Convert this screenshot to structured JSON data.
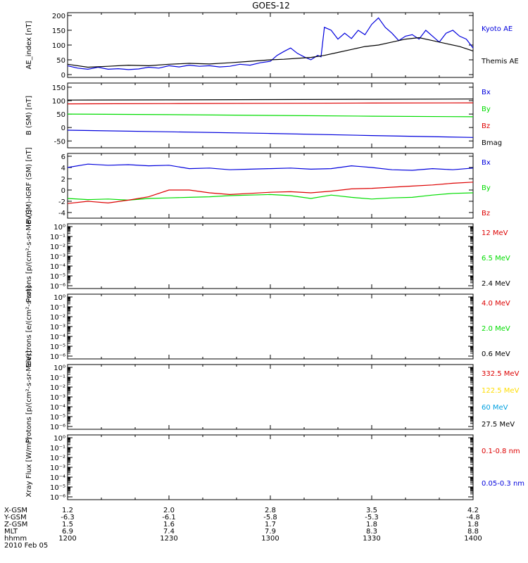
{
  "title": "GOES-12",
  "x_axis": {
    "row_labels": [
      "X-GSM",
      "Y-GSM",
      "Z-GSM",
      "MLT",
      "hhmm"
    ],
    "columns": [
      [
        "1.2",
        "-6.3",
        "1.5",
        "6.9",
        "1200"
      ],
      [
        "2.0",
        "-6.1",
        "1.6",
        "7.4",
        "1230"
      ],
      [
        "2.8",
        "-5.8",
        "1.7",
        "7.9",
        "1300"
      ],
      [
        "3.5",
        "-5.3",
        "1.8",
        "8.3",
        "1330"
      ],
      [
        "4.2",
        "-4.8",
        "1.8",
        "8.8",
        "1400"
      ]
    ],
    "date": "2010 Feb 05"
  },
  "colors": {
    "blue": "#0000dd",
    "green": "#00dd00",
    "red": "#dd0000",
    "black": "#000000",
    "yellow": "#ffdd00",
    "cyan": "#00a0e0"
  },
  "chart_data": [
    {
      "type": "line",
      "ylabel": "AE_index [nT]",
      "ylim": [
        0,
        200
      ],
      "yticks": [
        "0",
        "50",
        "100",
        "150",
        "200"
      ],
      "x_range_minutes": [
        0,
        120
      ],
      "series": [
        {
          "name": "Kyoto AE",
          "color": "blue",
          "x": [
            0,
            3,
            6,
            9,
            12,
            15,
            18,
            21,
            24,
            27,
            30,
            33,
            36,
            39,
            42,
            45,
            48,
            51,
            54,
            57,
            60,
            62,
            64,
            66,
            68,
            70,
            72,
            74,
            75,
            76,
            78,
            80,
            82,
            84,
            86,
            88,
            90,
            92,
            94,
            96,
            98,
            100,
            102,
            104,
            106,
            108,
            110,
            112,
            114,
            116,
            118,
            120
          ],
          "y": [
            30,
            22,
            18,
            25,
            18,
            20,
            17,
            19,
            25,
            22,
            30,
            26,
            32,
            28,
            30,
            26,
            28,
            35,
            32,
            40,
            45,
            65,
            78,
            90,
            72,
            60,
            50,
            65,
            60,
            160,
            150,
            120,
            140,
            122,
            150,
            135,
            170,
            192,
            160,
            140,
            115,
            130,
            135,
            120,
            150,
            130,
            110,
            140,
            150,
            130,
            120,
            90
          ]
        },
        {
          "name": "Themis AE",
          "color": "black",
          "x": [
            0,
            6,
            12,
            18,
            24,
            30,
            36,
            42,
            48,
            54,
            60,
            64,
            68,
            72,
            76,
            80,
            84,
            88,
            92,
            96,
            100,
            104,
            108,
            112,
            116,
            120
          ],
          "y": [
            35,
            25,
            28,
            32,
            30,
            35,
            38,
            36,
            40,
            45,
            50,
            52,
            55,
            58,
            65,
            75,
            85,
            95,
            100,
            110,
            120,
            125,
            115,
            105,
            95,
            80
          ]
        }
      ]
    },
    {
      "type": "line",
      "ylabel": "B (SM) [nT]",
      "ylim": [
        -65,
        155
      ],
      "yticks": [
        "-50",
        "0",
        "50",
        "100",
        "150"
      ],
      "x_range_minutes": [
        0,
        120
      ],
      "series": [
        {
          "name": "Bx",
          "color": "blue",
          "x": [
            0,
            30,
            60,
            90,
            120
          ],
          "y": [
            -10,
            -16,
            -22,
            -30,
            -37
          ]
        },
        {
          "name": "By",
          "color": "green",
          "x": [
            0,
            30,
            60,
            90,
            120
          ],
          "y": [
            50,
            48,
            45,
            42,
            40
          ]
        },
        {
          "name": "Bz",
          "color": "red",
          "x": [
            0,
            30,
            60,
            90,
            120
          ],
          "y": [
            88,
            89,
            90,
            91,
            92
          ]
        },
        {
          "name": "Bmag",
          "color": "black",
          "x": [
            0,
            30,
            60,
            90,
            120
          ],
          "y": [
            102,
            103,
            104,
            105,
            106
          ]
        }
      ]
    },
    {
      "type": "line",
      "ylabel": "B (SM)-IGRF (SM) [nT]",
      "ylim": [
        -4.5,
        6
      ],
      "yticks": [
        "-4",
        "-2",
        "0",
        "2",
        "4",
        "6"
      ],
      "x_range_minutes": [
        0,
        120
      ],
      "series": [
        {
          "name": "Bx",
          "color": "blue",
          "x": [
            0,
            6,
            12,
            18,
            24,
            30,
            36,
            42,
            48,
            54,
            60,
            66,
            72,
            78,
            84,
            90,
            96,
            102,
            108,
            114,
            120
          ],
          "y": [
            4.0,
            4.6,
            4.4,
            4.5,
            4.3,
            4.4,
            3.8,
            3.9,
            3.6,
            3.7,
            3.8,
            3.9,
            3.7,
            3.8,
            4.3,
            4.0,
            3.6,
            3.5,
            3.8,
            3.6,
            3.9
          ]
        },
        {
          "name": "By",
          "color": "green",
          "x": [
            0,
            6,
            12,
            18,
            24,
            30,
            36,
            42,
            48,
            54,
            60,
            66,
            72,
            78,
            84,
            90,
            96,
            102,
            108,
            114,
            120
          ],
          "y": [
            -1.5,
            -1.7,
            -1.6,
            -1.8,
            -1.5,
            -1.4,
            -1.3,
            -1.2,
            -1.0,
            -0.9,
            -0.8,
            -1.0,
            -1.5,
            -0.9,
            -1.3,
            -1.6,
            -1.4,
            -1.3,
            -0.9,
            -0.6,
            -0.5
          ]
        },
        {
          "name": "Bz",
          "color": "red",
          "x": [
            0,
            6,
            12,
            18,
            24,
            30,
            36,
            42,
            48,
            54,
            60,
            66,
            72,
            78,
            84,
            90,
            96,
            102,
            108,
            114,
            120
          ],
          "y": [
            -2.4,
            -2.0,
            -2.3,
            -1.8,
            -1.2,
            0.0,
            0.0,
            -0.5,
            -0.8,
            -0.6,
            -0.4,
            -0.3,
            -0.5,
            -0.2,
            0.2,
            0.3,
            0.5,
            0.7,
            0.9,
            1.2,
            1.4
          ]
        }
      ]
    },
    {
      "type": "line",
      "ylabel": "Protons [p/(cm²-s-sr-MeV)]",
      "yscale": "log",
      "yticks": [
        "10⁰",
        "10⁻¹",
        "10⁻²",
        "10⁻³",
        "10⁻⁴",
        "10⁻⁵",
        "10⁻⁶"
      ],
      "legend": [
        {
          "name": "12 MeV",
          "color": "red"
        },
        {
          "name": "6.5 MeV",
          "color": "green"
        },
        {
          "name": "2.4 MeV",
          "color": "black"
        }
      ]
    },
    {
      "type": "line",
      "ylabel": "Electrons [e/(cm²-s-sr)]",
      "yscale": "log",
      "yticks": [
        "10⁰",
        "10⁻¹",
        "10⁻²",
        "10⁻³",
        "10⁻⁴",
        "10⁻⁵",
        "10⁻⁶"
      ],
      "legend": [
        {
          "name": "4.0 MeV",
          "color": "red"
        },
        {
          "name": "2.0 MeV",
          "color": "green"
        },
        {
          "name": "0.6 MeV",
          "color": "black"
        }
      ]
    },
    {
      "type": "line",
      "ylabel": "Protons [p/(cm²-s-sr-MeV)]",
      "yscale": "log",
      "yticks": [
        "10⁰",
        "10⁻¹",
        "10⁻²",
        "10⁻³",
        "10⁻⁴",
        "10⁻⁵",
        "10⁻⁶"
      ],
      "legend": [
        {
          "name": "332.5 MeV",
          "color": "red"
        },
        {
          "name": "122.5 MeV",
          "color": "yellow"
        },
        {
          "name": "60 MeV",
          "color": "cyan"
        },
        {
          "name": "27.5 MeV",
          "color": "black"
        }
      ]
    },
    {
      "type": "line",
      "ylabel": "Xray Flux [W/m²]",
      "yscale": "log",
      "yticks": [
        "10⁰",
        "10⁻¹",
        "10⁻²",
        "10⁻³",
        "10⁻⁴",
        "10⁻⁵",
        "10⁻⁶"
      ],
      "legend": [
        {
          "name": "0.1-0.8 nm",
          "color": "red"
        },
        {
          "name": "0.05-0.3 nm",
          "color": "blue"
        }
      ]
    }
  ]
}
